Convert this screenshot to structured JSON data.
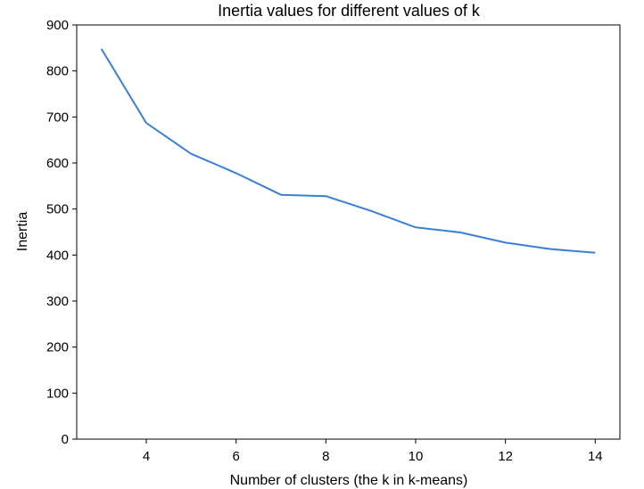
{
  "chart_data": {
    "type": "line",
    "title": "Inertia values for different values of k",
    "xlabel": "Number of clusters (the k in k-means)",
    "ylabel": "Inertia",
    "xlim": [
      2.45,
      14.55
    ],
    "ylim": [
      0,
      900
    ],
    "xticks": [
      4,
      6,
      8,
      10,
      12,
      14
    ],
    "yticks": [
      0,
      100,
      200,
      300,
      400,
      500,
      600,
      700,
      800,
      900
    ],
    "grid": false,
    "series": [
      {
        "x": [
          3,
          4,
          5,
          6,
          7,
          8,
          9,
          10,
          11,
          12,
          13,
          14
        ],
        "values": [
          848,
          687,
          620,
          578,
          531,
          528,
          496,
          460,
          449,
          427,
          413,
          405
        ],
        "color": "#3a7fd5"
      }
    ]
  }
}
